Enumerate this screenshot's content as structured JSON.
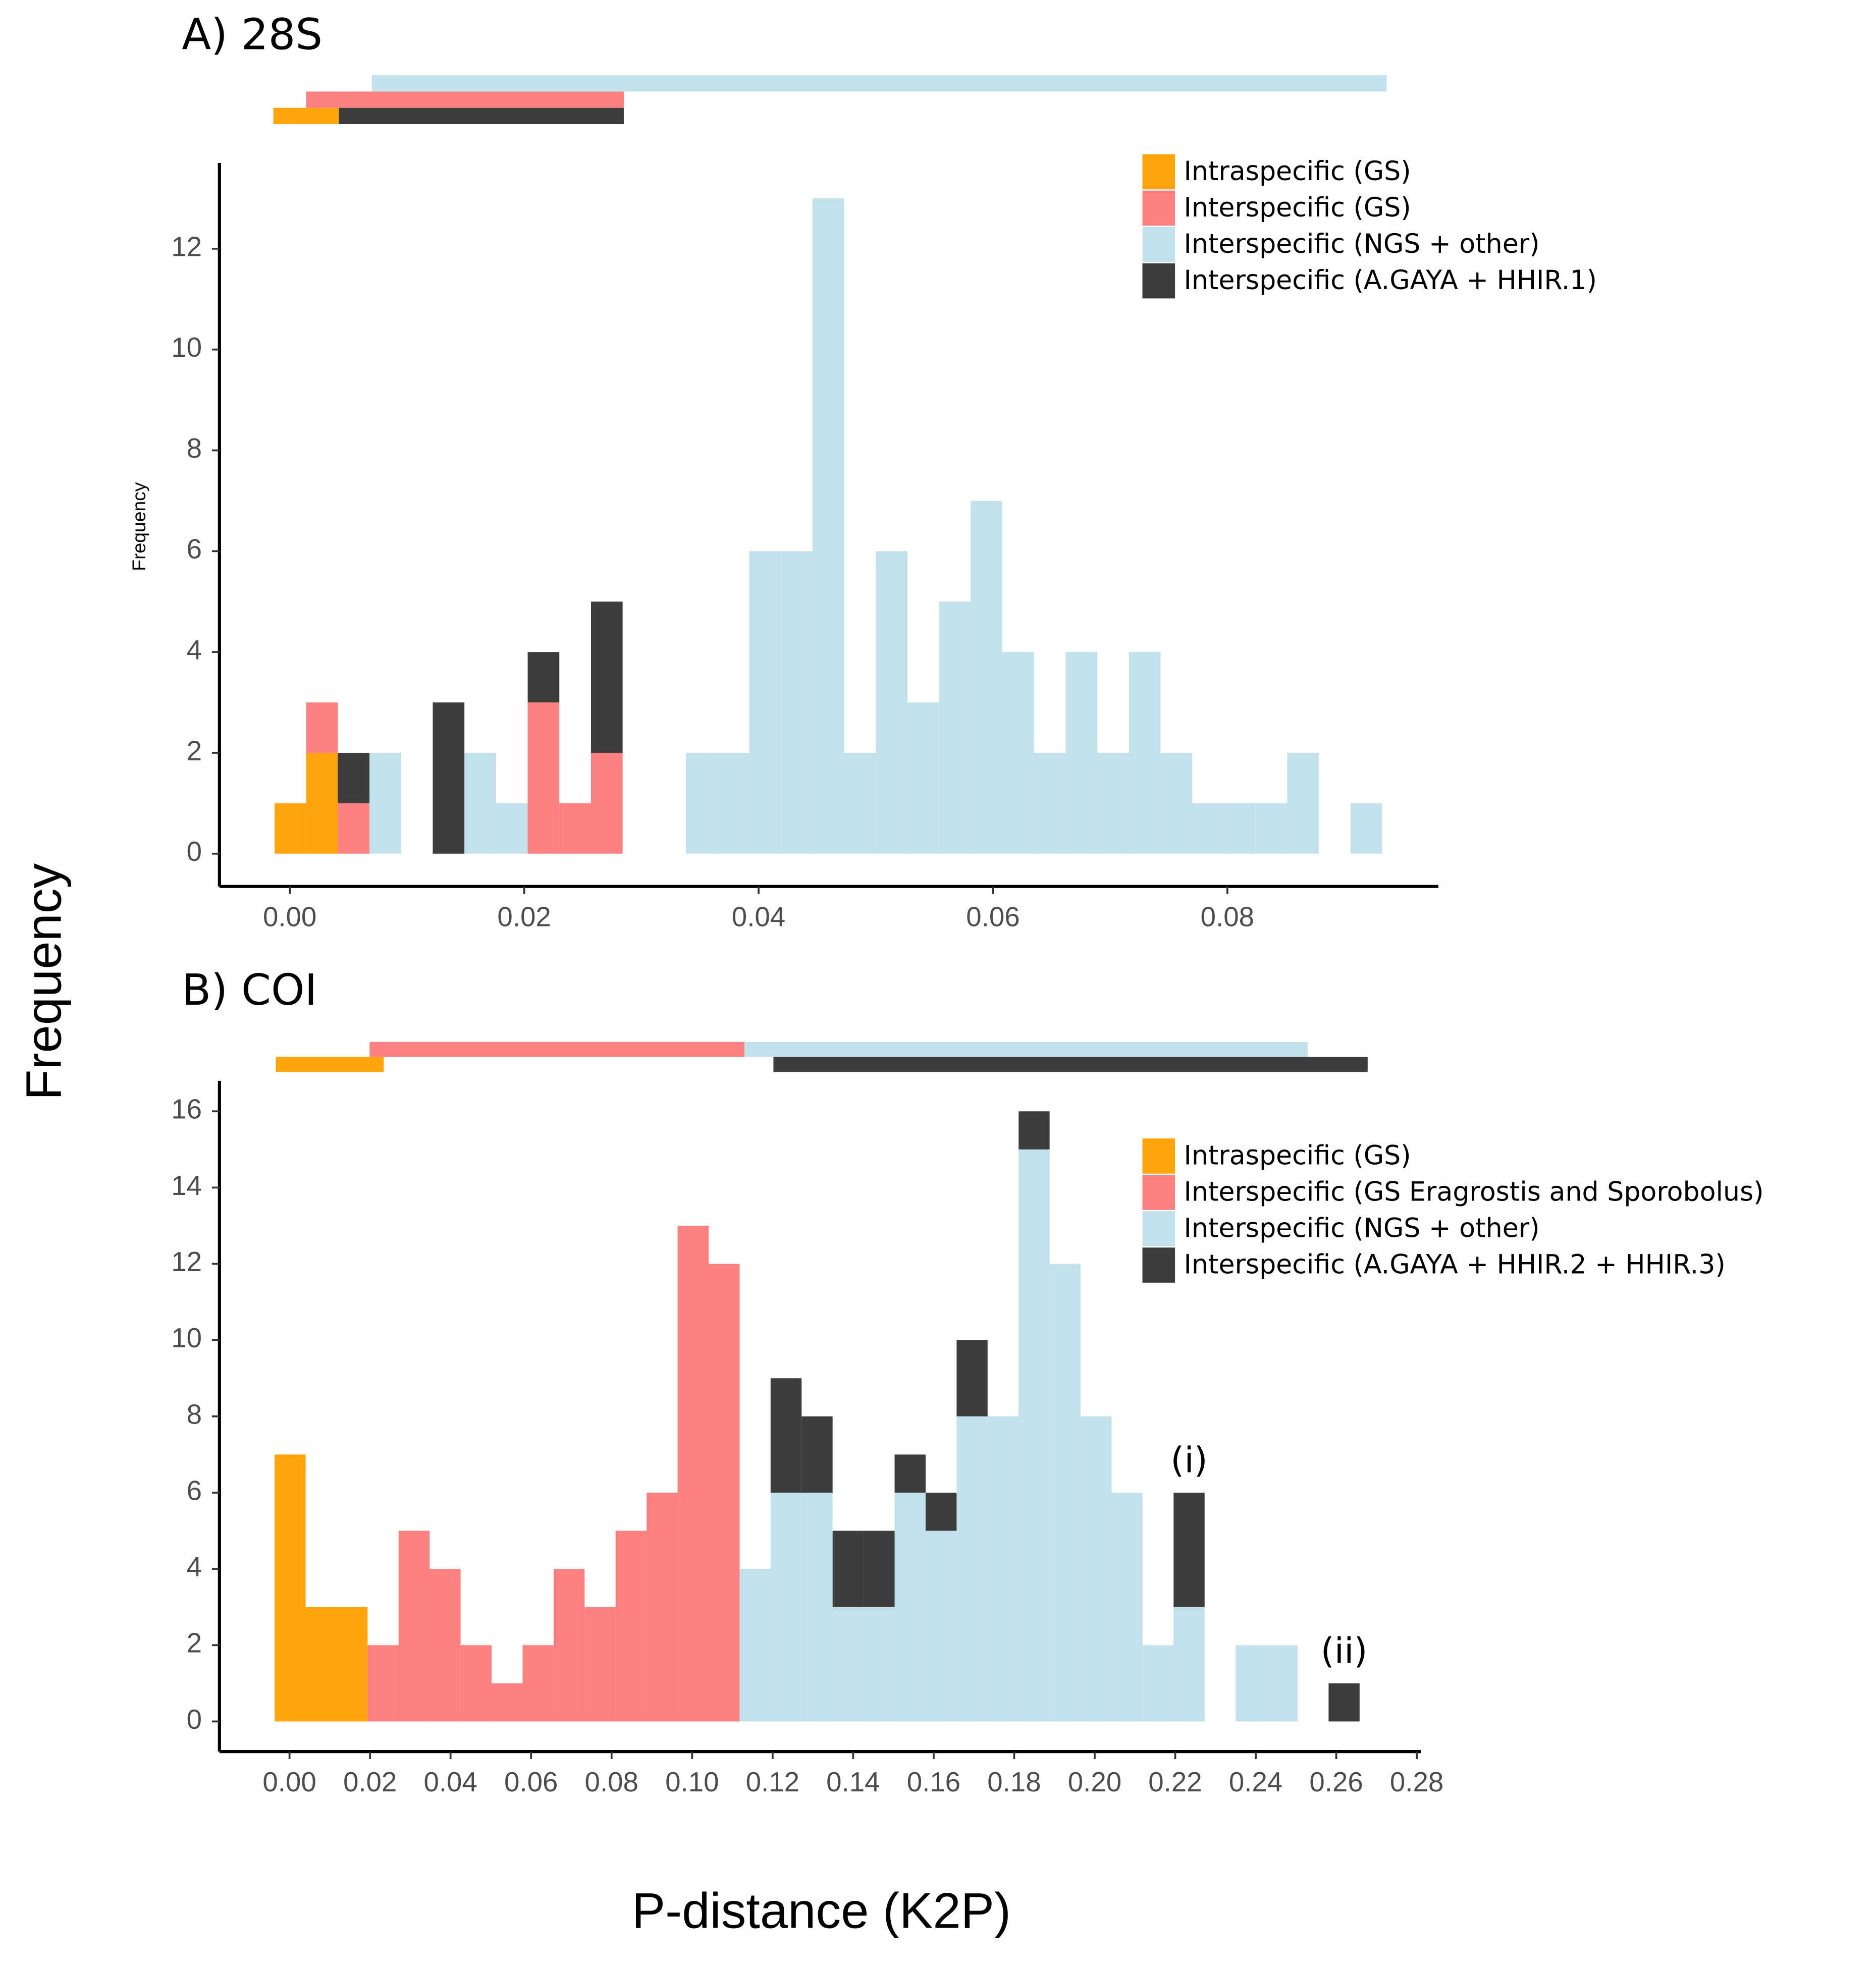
{
  "xlabel": "P-distance (K2P)",
  "ylabel": "Frequency",
  "chart_data": [
    {
      "type": "histogram",
      "title": "A) 28S",
      "ylabel": "Frequency",
      "bins": [
        -0.0013,
        0.0014,
        0.0041,
        0.0068,
        0.0095,
        0.0122,
        0.0149,
        0.0176,
        0.0203,
        0.023,
        0.0257,
        0.0284,
        0.0311,
        0.0338,
        0.0365,
        0.0392,
        0.0419,
        0.0446,
        0.0473,
        0.05,
        0.0527,
        0.0554,
        0.0581,
        0.0608,
        0.0635,
        0.0662,
        0.0689,
        0.0716,
        0.0743,
        0.077,
        0.0797,
        0.0824,
        0.0851,
        0.0878,
        0.0905,
        0.0932
      ],
      "series": [
        {
          "name": "Intraspecific (GS)",
          "color": "#ffa30a",
          "range": [
            -0.0014,
            0.0042
          ],
          "values": [
            1,
            2,
            0,
            0,
            0,
            0,
            0,
            0,
            0,
            0,
            0,
            0,
            0,
            0,
            0,
            0,
            0,
            0,
            0,
            0,
            0,
            0,
            0,
            0,
            0,
            0,
            0,
            0,
            0,
            0,
            0,
            0,
            0,
            0,
            0
          ]
        },
        {
          "name": "Interspecific (GS)",
          "color": "#fd8080",
          "range": [
            0.0014,
            0.0285
          ],
          "values": [
            0,
            1,
            1,
            0,
            0,
            0,
            0,
            0,
            3,
            1,
            2,
            0,
            0,
            0,
            0,
            0,
            0,
            0,
            0,
            0,
            0,
            0,
            0,
            0,
            0,
            0,
            0,
            0,
            0,
            0,
            0,
            0,
            0,
            0,
            0
          ]
        },
        {
          "name": "Interspecific (NGS + other)",
          "color": "#c3e1ea",
          "range": [
            0.007,
            0.0936
          ],
          "values": [
            0,
            0,
            0,
            2,
            0,
            0,
            2,
            1,
            0,
            0,
            0,
            0,
            0,
            2,
            2,
            6,
            6,
            13,
            2,
            6,
            3,
            5,
            7,
            4,
            2,
            4,
            2,
            4,
            2,
            1,
            1,
            1,
            2,
            0,
            1
          ]
        },
        {
          "name": "Interspecific (A.GAYA + HHIR.1)",
          "color": "#3d3d3d",
          "range": [
            0.0042,
            0.0285
          ],
          "values": [
            0,
            0,
            1,
            0,
            0,
            3,
            0,
            0,
            1,
            0,
            3,
            0,
            0,
            0,
            0,
            0,
            0,
            0,
            0,
            0,
            0,
            0,
            0,
            0,
            0,
            0,
            0,
            0,
            0,
            0,
            0,
            0,
            0,
            0,
            0
          ]
        }
      ],
      "xlim": [
        -0.006,
        0.098
      ],
      "ylim": [
        -0.65,
        13.7
      ],
      "xticks": [
        {
          "value": 0,
          "label": "0.00"
        },
        {
          "value": 0.02,
          "label": "0.02"
        },
        {
          "value": 0.04,
          "label": "0.04"
        },
        {
          "value": 0.06,
          "label": "0.06"
        },
        {
          "value": 0.08,
          "label": "0.08"
        }
      ],
      "yticks": [
        0,
        2,
        4,
        6,
        8,
        10,
        12
      ],
      "legend": "top-right"
    },
    {
      "type": "histogram",
      "title": "B) COI",
      "bins": [
        -0.0037,
        0.004,
        0.0117,
        0.0194,
        0.0271,
        0.0348,
        0.0425,
        0.0502,
        0.0579,
        0.0656,
        0.0733,
        0.081,
        0.0887,
        0.0964,
        0.1041,
        0.1118,
        0.1195,
        0.1272,
        0.1349,
        0.1426,
        0.1503,
        0.158,
        0.1657,
        0.1734,
        0.1811,
        0.1888,
        0.1965,
        0.2042,
        0.2119,
        0.2196,
        0.2273,
        0.235,
        0.2427,
        0.2504,
        0.2581,
        0.2658
      ],
      "series": [
        {
          "name": "Intraspecific (GS)",
          "color": "#ffa30a",
          "range": [
            -0.0034,
            0.0234
          ],
          "values": [
            7,
            3,
            3,
            0,
            0,
            0,
            0,
            0,
            0,
            0,
            0,
            0,
            0,
            0,
            0,
            0,
            0,
            0,
            0,
            0,
            0,
            0,
            0,
            0,
            0,
            0,
            0,
            0,
            0,
            0,
            0,
            0,
            0,
            0,
            0
          ]
        },
        {
          "name": "Interspecific (GS Eragrostis and Sporobolus)",
          "color": "#fd8080",
          "range": [
            0.0199,
            0.113
          ],
          "values": [
            0,
            0,
            0,
            2,
            5,
            4,
            2,
            1,
            2,
            4,
            3,
            5,
            6,
            13,
            12,
            0,
            0,
            0,
            0,
            0,
            0,
            0,
            0,
            0,
            0,
            0,
            0,
            0,
            0,
            0,
            0,
            0,
            0,
            0,
            0
          ]
        },
        {
          "name": "Interspecific (NGS + other)",
          "color": "#c3e1ea",
          "range": [
            0.113,
            0.2529
          ],
          "values": [
            0,
            0,
            0,
            0,
            0,
            0,
            0,
            0,
            0,
            0,
            0,
            0,
            0,
            0,
            0,
            4,
            6,
            6,
            3,
            3,
            6,
            5,
            8,
            8,
            15,
            12,
            8,
            6,
            2,
            3,
            0,
            2,
            2,
            0,
            0
          ]
        },
        {
          "name": "Interspecific (A.GAYA + HHIR.2 + HHIR.3)",
          "color": "#3d3d3d",
          "range": [
            0.1202,
            0.2678
          ],
          "values": [
            0,
            0,
            0,
            0,
            0,
            0,
            0,
            0,
            0,
            0,
            0,
            0,
            0,
            0,
            0,
            0,
            3,
            2,
            2,
            2,
            1,
            1,
            2,
            0,
            1,
            0,
            0,
            0,
            0,
            3,
            0,
            0,
            0,
            0,
            1
          ]
        }
      ],
      "annotations": [
        {
          "text": "(i)",
          "bin": 29
        },
        {
          "text": "(ii)",
          "bin": 34
        }
      ],
      "xlim": [
        -0.0174,
        0.281
      ],
      "ylim": [
        -0.79,
        16.8
      ],
      "xticks": [
        {
          "value": 0,
          "label": "0.00"
        },
        {
          "value": 0.02,
          "label": "0.02"
        },
        {
          "value": 0.04,
          "label": "0.04"
        },
        {
          "value": 0.06,
          "label": "0.06"
        },
        {
          "value": 0.08,
          "label": "0.08"
        },
        {
          "value": 0.1,
          "label": "0.10"
        },
        {
          "value": 0.12,
          "label": "0.12"
        },
        {
          "value": 0.14,
          "label": "0.14"
        },
        {
          "value": 0.16,
          "label": "0.16"
        },
        {
          "value": 0.18,
          "label": "0.18"
        },
        {
          "value": 0.2,
          "label": "0.20"
        },
        {
          "value": 0.22,
          "label": "0.22"
        },
        {
          "value": 0.24,
          "label": "0.24"
        },
        {
          "value": 0.26,
          "label": "0.26"
        },
        {
          "value": 0.28,
          "label": "0.28"
        }
      ],
      "yticks": [
        0,
        2,
        4,
        6,
        8,
        10,
        12,
        14,
        16
      ],
      "legend": "top-right"
    }
  ]
}
